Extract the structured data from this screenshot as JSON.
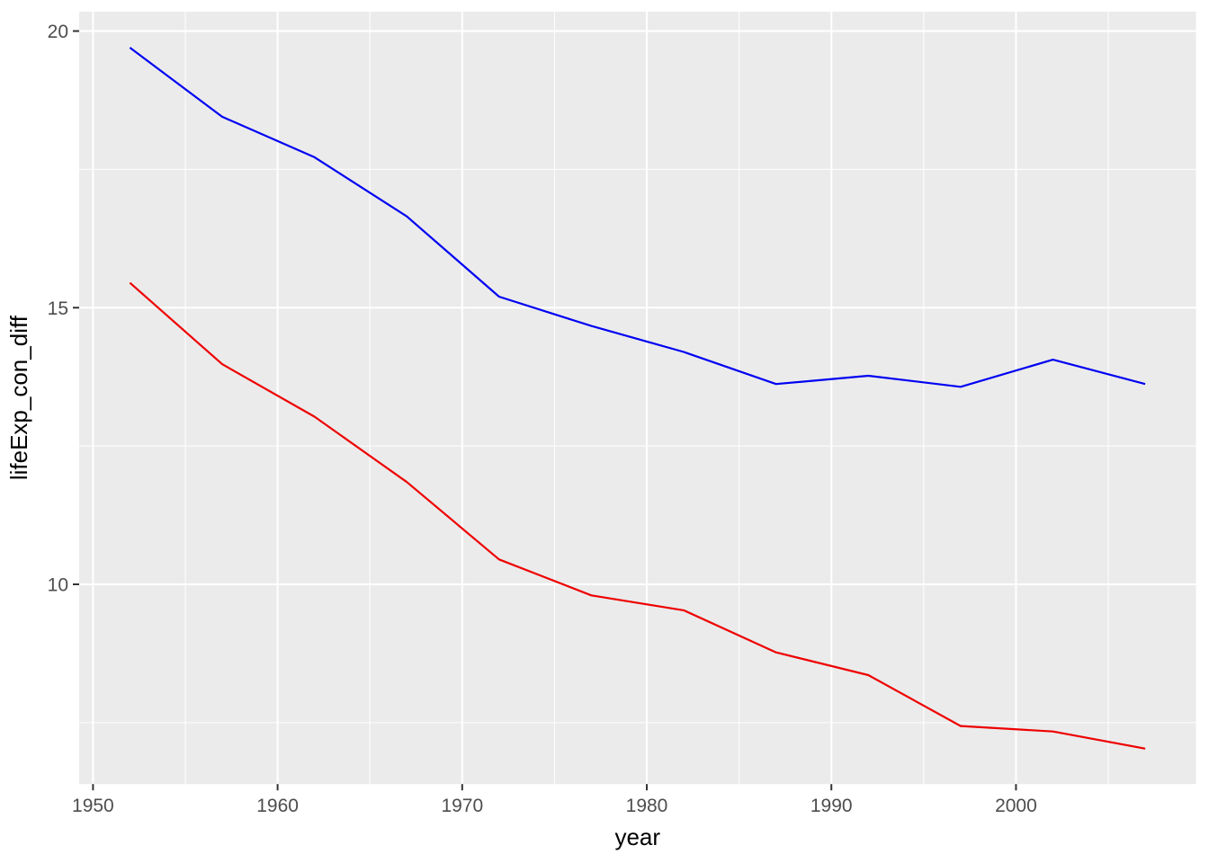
{
  "chart_data": {
    "type": "line",
    "title": "",
    "xlabel": "year",
    "ylabel": "lifeExp_con_diff",
    "x": [
      1952,
      1957,
      1962,
      1967,
      1972,
      1977,
      1982,
      1987,
      1992,
      1997,
      2002,
      2007
    ],
    "series": [
      {
        "name": "blue-line",
        "color": "#0000F2",
        "values": [
          19.7,
          18.45,
          17.72,
          16.65,
          15.2,
          14.67,
          14.2,
          13.62,
          13.77,
          13.57,
          14.06,
          13.62
        ]
      },
      {
        "name": "red-line",
        "color": "#EE0000",
        "values": [
          15.45,
          13.98,
          13.03,
          11.85,
          10.45,
          9.8,
          9.53,
          8.77,
          8.36,
          7.44,
          7.34,
          7.03
        ]
      }
    ],
    "xlim": [
      1949.25,
      2009.75
    ],
    "ylim": [
      6.39,
      20.35
    ],
    "x_major_ticks": [
      1950,
      1960,
      1970,
      1980,
      1990,
      2000
    ],
    "x_tick_labels": [
      "1950",
      "1960",
      "1970",
      "1980",
      "1990",
      "2000"
    ],
    "x_minor_ticks": [
      1955,
      1965,
      1975,
      1985,
      1995,
      2005
    ],
    "y_major_ticks": [
      10,
      15,
      20
    ],
    "y_tick_labels": [
      "10",
      "15",
      "20"
    ],
    "y_minor_ticks": [
      7.5,
      12.5,
      17.5
    ],
    "grid": "major-and-minor",
    "legend": "none",
    "colors": {
      "panel_bg": "#EBEBEB",
      "grid": "#FFFFFF",
      "tick_mark": "#333333",
      "tick_text": "#4D4D4D",
      "axis_title": "#000000"
    }
  }
}
